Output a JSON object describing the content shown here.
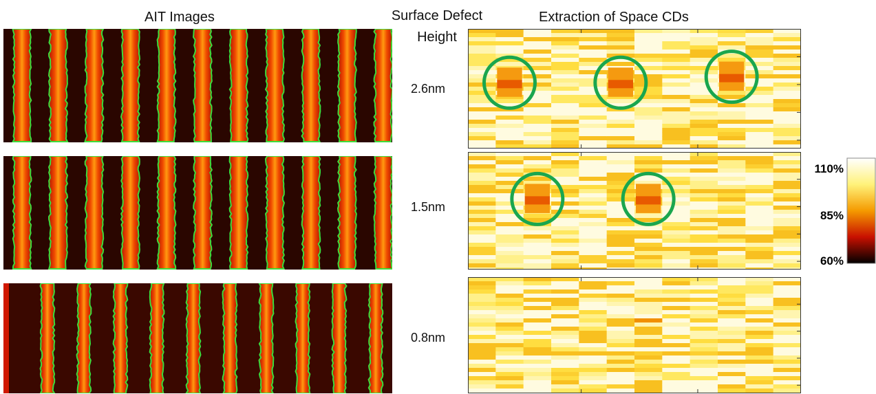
{
  "header": {
    "left_title": "AIT Images",
    "middle_title": "Surface Defect Height",
    "right_title": "Extraction of Space CDs"
  },
  "rows": [
    {
      "height": "2.6nm"
    },
    {
      "height": "1.5nm"
    },
    {
      "height": "0.8nm"
    }
  ],
  "colorbar": {
    "labels": [
      "110%",
      "85%",
      "60%"
    ]
  }
}
